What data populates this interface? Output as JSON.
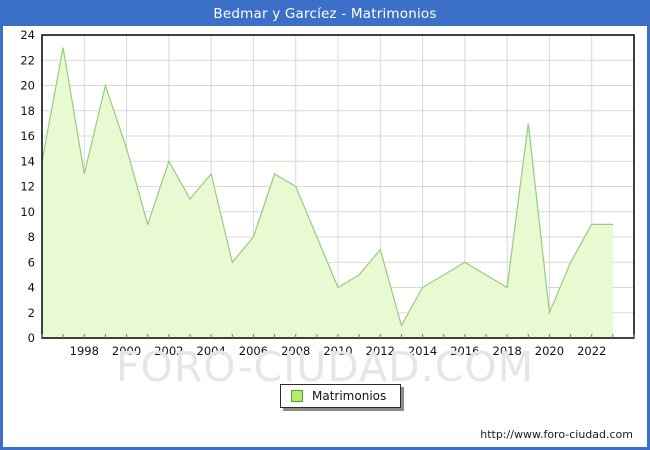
{
  "window": {
    "title": "Bedmar y Garcíez - Matrimonios"
  },
  "legend": {
    "label": "Matrimonios"
  },
  "watermark": "FORO-CIUDAD.COM",
  "footer": {
    "url": "http://www.foro-ciudad.com"
  },
  "colors": {
    "frame_blue": "#3C70C8",
    "title_text": "#FFFFFF",
    "area_fill": "#E9FAD2",
    "line_green": "#94CD7E",
    "legend_swatch": "#B9EA6E",
    "legend_swatch_border": "#569A32",
    "grid": "#D9D9D9",
    "axis_text": "#111111",
    "plot_border": "#000000"
  },
  "chart_data": {
    "type": "area",
    "title": "Bedmar y Garcíez - Matrimonios",
    "xlabel": "",
    "ylabel": "",
    "x": [
      1996,
      1997,
      1998,
      1999,
      2000,
      2001,
      2002,
      2003,
      2004,
      2005,
      2006,
      2007,
      2008,
      2009,
      2010,
      2011,
      2012,
      2013,
      2014,
      2015,
      2016,
      2017,
      2018,
      2019,
      2020,
      2021,
      2022,
      2023
    ],
    "series": [
      {
        "name": "Matrimonios",
        "values": [
          14,
          23,
          13,
          20,
          15,
          9,
          14,
          11,
          13,
          6,
          8,
          13,
          12,
          8,
          4,
          5,
          7,
          1,
          4,
          5,
          6,
          5,
          4,
          17,
          2,
          6,
          9,
          9
        ]
      }
    ],
    "ylim": [
      0,
      24
    ],
    "ytick_step": 2,
    "xaxis_end": 2024,
    "xtick_labels": [
      "1998",
      "2000",
      "2002",
      "2004",
      "2006",
      "2008",
      "2010",
      "2012",
      "2014",
      "2016",
      "2018",
      "2020",
      "2022"
    ],
    "grid": true,
    "legend_position": "bottom-center"
  }
}
